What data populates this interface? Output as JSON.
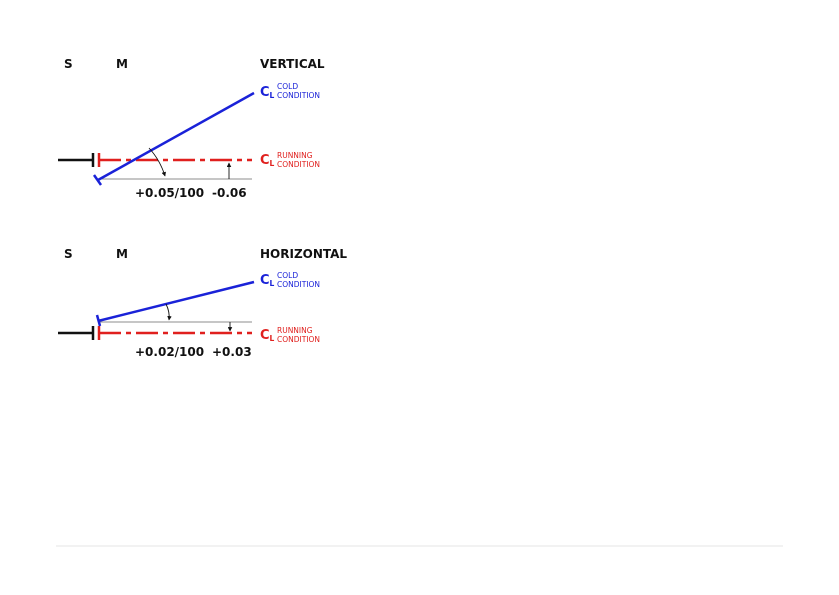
{
  "colors": {
    "cold": "#1a22d8",
    "running": "#e0201e",
    "shaft": "#111111",
    "rule": "#e6e6e6"
  },
  "vertical": {
    "label_s": "S",
    "label_m": "M",
    "title": "VERTICAL",
    "cold": {
      "cl": "C",
      "cl_sub": "L",
      "line1": "COLD",
      "line2": "CONDITION"
    },
    "running": {
      "cl": "C",
      "cl_sub": "L",
      "line1": "RUNNING",
      "line2": "CONDITION"
    },
    "angle_value": "+0.05/100",
    "offset_value": "-0.06"
  },
  "horizontal": {
    "label_s": "S",
    "label_m": "M",
    "title": "HORIZONTAL",
    "cold": {
      "cl": "C",
      "cl_sub": "L",
      "line1": "COLD",
      "line2": "CONDITION"
    },
    "running": {
      "cl": "C",
      "cl_sub": "L",
      "line1": "RUNNING",
      "line2": "CONDITION"
    },
    "angle_value": "+0.02/100",
    "offset_value": "+0.03"
  }
}
